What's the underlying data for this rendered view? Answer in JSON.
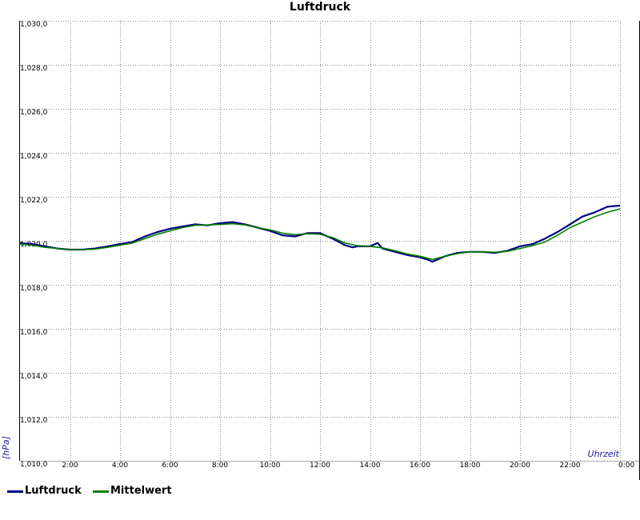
{
  "chart_data": {
    "type": "line",
    "title": "Luftdruck",
    "ylabel": "[hPa]",
    "xlabel": "Uhrzeit",
    "ylim": [
      1010,
      1030
    ],
    "xlim": [
      0,
      24
    ],
    "y_ticks": [
      "1,010,0",
      "1,012,0",
      "1,014,0",
      "1,016,0",
      "1,018,0",
      "1,020,0",
      "1,022,0",
      "1,024,0",
      "1,026,0",
      "1,028,0",
      "1,030,0"
    ],
    "y_tick_values": [
      1010,
      1012,
      1014,
      1016,
      1018,
      1020,
      1022,
      1024,
      1026,
      1028,
      1030
    ],
    "x_ticks": [
      "2:00",
      "4:00",
      "6:00",
      "8:00",
      "10:00",
      "12:00",
      "14:00",
      "16:00",
      "18:00",
      "20:00",
      "22:00",
      "0:00"
    ],
    "x_tick_values": [
      2,
      4,
      6,
      8,
      10,
      12,
      14,
      16,
      18,
      20,
      22,
      24
    ],
    "grid": true,
    "legend_position": "bottom-left",
    "series": [
      {
        "name": "Luftdruck",
        "color": "#000080",
        "points": [
          [
            0,
            1019.9
          ],
          [
            0.5,
            1019.85
          ],
          [
            1,
            1019.75
          ],
          [
            1.5,
            1019.65
          ],
          [
            2,
            1019.6
          ],
          [
            2.5,
            1019.6
          ],
          [
            3,
            1019.65
          ],
          [
            3.5,
            1019.75
          ],
          [
            4,
            1019.85
          ],
          [
            4.5,
            1019.95
          ],
          [
            5,
            1020.2
          ],
          [
            5.5,
            1020.4
          ],
          [
            6,
            1020.55
          ],
          [
            6.5,
            1020.65
          ],
          [
            7,
            1020.75
          ],
          [
            7.5,
            1020.7
          ],
          [
            8,
            1020.8
          ],
          [
            8.5,
            1020.85
          ],
          [
            9,
            1020.75
          ],
          [
            9.5,
            1020.6
          ],
          [
            10,
            1020.45
          ],
          [
            10.5,
            1020.25
          ],
          [
            11,
            1020.2
          ],
          [
            11.5,
            1020.35
          ],
          [
            12,
            1020.35
          ],
          [
            12.5,
            1020.1
          ],
          [
            13,
            1019.8
          ],
          [
            13.3,
            1019.7
          ],
          [
            13.5,
            1019.75
          ],
          [
            14,
            1019.75
          ],
          [
            14.3,
            1019.9
          ],
          [
            14.5,
            1019.65
          ],
          [
            15,
            1019.5
          ],
          [
            15.5,
            1019.35
          ],
          [
            16,
            1019.25
          ],
          [
            16.3,
            1019.15
          ],
          [
            16.5,
            1019.05
          ],
          [
            16.8,
            1019.2
          ],
          [
            17,
            1019.3
          ],
          [
            17.5,
            1019.45
          ],
          [
            18,
            1019.5
          ],
          [
            18.5,
            1019.5
          ],
          [
            19,
            1019.45
          ],
          [
            19.5,
            1019.55
          ],
          [
            20,
            1019.75
          ],
          [
            20.5,
            1019.85
          ],
          [
            21,
            1020.1
          ],
          [
            21.5,
            1020.4
          ],
          [
            22,
            1020.75
          ],
          [
            22.5,
            1021.1
          ],
          [
            23,
            1021.3
          ],
          [
            23.5,
            1021.55
          ],
          [
            24,
            1021.6
          ]
        ]
      },
      {
        "name": "Mittelwert",
        "color": "#008000",
        "points": [
          [
            0,
            1019.85
          ],
          [
            0.5,
            1019.8
          ],
          [
            1,
            1019.7
          ],
          [
            1.5,
            1019.65
          ],
          [
            2,
            1019.6
          ],
          [
            2.5,
            1019.6
          ],
          [
            3,
            1019.62
          ],
          [
            3.5,
            1019.7
          ],
          [
            4,
            1019.8
          ],
          [
            4.5,
            1019.9
          ],
          [
            5,
            1020.1
          ],
          [
            5.5,
            1020.3
          ],
          [
            6,
            1020.45
          ],
          [
            6.5,
            1020.6
          ],
          [
            7,
            1020.7
          ],
          [
            7.5,
            1020.72
          ],
          [
            8,
            1020.74
          ],
          [
            8.5,
            1020.78
          ],
          [
            9,
            1020.72
          ],
          [
            9.5,
            1020.6
          ],
          [
            10,
            1020.5
          ],
          [
            10.5,
            1020.35
          ],
          [
            11,
            1020.28
          ],
          [
            11.5,
            1020.32
          ],
          [
            12,
            1020.3
          ],
          [
            12.5,
            1020.15
          ],
          [
            13,
            1019.9
          ],
          [
            13.5,
            1019.78
          ],
          [
            14,
            1019.75
          ],
          [
            14.5,
            1019.68
          ],
          [
            15,
            1019.55
          ],
          [
            15.5,
            1019.4
          ],
          [
            16,
            1019.3
          ],
          [
            16.5,
            1019.15
          ],
          [
            17,
            1019.3
          ],
          [
            17.5,
            1019.42
          ],
          [
            18,
            1019.5
          ],
          [
            18.5,
            1019.5
          ],
          [
            19,
            1019.48
          ],
          [
            19.5,
            1019.52
          ],
          [
            20,
            1019.65
          ],
          [
            20.5,
            1019.78
          ],
          [
            21,
            1019.95
          ],
          [
            21.5,
            1020.25
          ],
          [
            22,
            1020.6
          ],
          [
            22.5,
            1020.85
          ],
          [
            23,
            1021.1
          ],
          [
            23.5,
            1021.3
          ],
          [
            24,
            1021.45
          ]
        ]
      }
    ]
  }
}
